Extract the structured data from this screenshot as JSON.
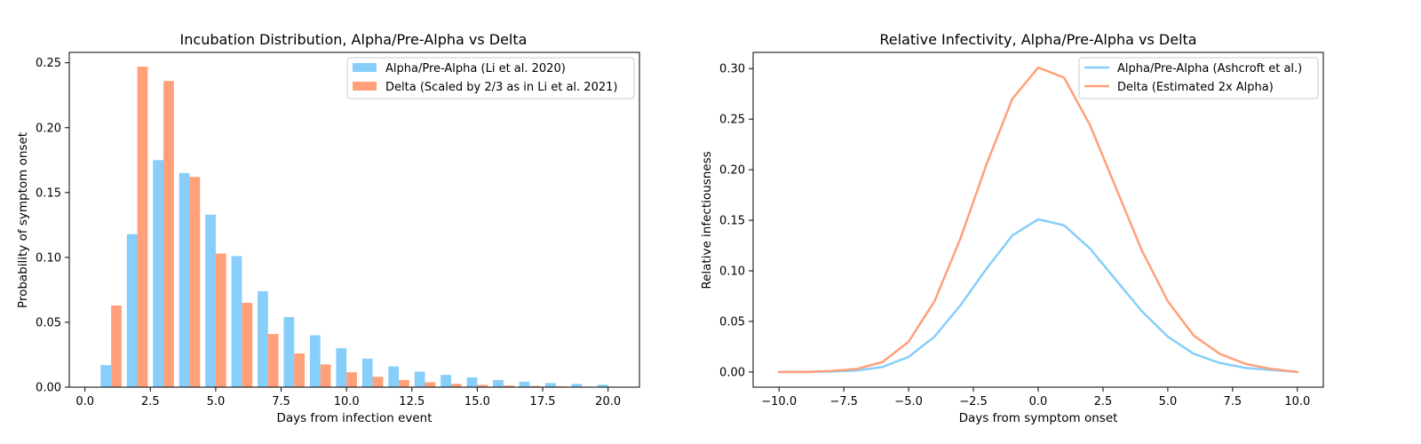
{
  "chart_data": [
    {
      "type": "bar",
      "title": "Incubation Distribution, Alpha/Pre-Alpha vs Delta",
      "xlabel": "Days from infection event",
      "ylabel": "Probability of symptom onset",
      "xlim": [
        -0.6,
        21.2
      ],
      "ylim": [
        0,
        0.258
      ],
      "xticks": [
        0.0,
        2.5,
        5.0,
        7.5,
        10.0,
        12.5,
        15.0,
        17.5,
        20.0
      ],
      "xtick_labels": [
        "0.0",
        "2.5",
        "5.0",
        "7.5",
        "10.0",
        "12.5",
        "15.0",
        "17.5",
        "20.0"
      ],
      "yticks": [
        0.0,
        0.05,
        0.1,
        0.15,
        0.2,
        0.25
      ],
      "ytick_labels": [
        "0.00",
        "0.05",
        "0.10",
        "0.15",
        "0.20",
        "0.25"
      ],
      "legend_position": "top-right",
      "x": [
        1,
        2,
        3,
        4,
        5,
        6,
        7,
        8,
        9,
        10,
        11,
        12,
        13,
        14,
        15,
        16,
        17,
        18,
        19,
        20
      ],
      "series": [
        {
          "name": "Alpha/Pre-Alpha (Li et al. 2020)",
          "color": "#87CEFA",
          "values": [
            0.017,
            0.118,
            0.175,
            0.165,
            0.133,
            0.101,
            0.074,
            0.054,
            0.04,
            0.03,
            0.022,
            0.016,
            0.012,
            0.0095,
            0.0075,
            0.0055,
            0.0042,
            0.0032,
            0.0025,
            0.0019
          ]
        },
        {
          "name": "Delta (Scaled by 2/3 as in Li et al. 2021)",
          "color": "#FFA07A",
          "values": [
            0.063,
            0.247,
            0.236,
            0.162,
            0.103,
            0.065,
            0.041,
            0.026,
            0.0175,
            0.0115,
            0.008,
            0.0055,
            0.0038,
            0.0026,
            0.0018,
            0.0013,
            0.0009,
            0.0006,
            0.0004,
            0.0003
          ]
        }
      ]
    },
    {
      "type": "line",
      "title": "Relative Infectivity, Alpha/Pre-Alpha vs Delta",
      "xlabel": "Days from symptom onset",
      "ylabel": "Relative infectiousness",
      "xlim": [
        -11.0,
        11.0
      ],
      "ylim": [
        -0.015,
        0.316
      ],
      "xticks": [
        -10.0,
        -7.5,
        -5.0,
        -2.5,
        0.0,
        2.5,
        5.0,
        7.5,
        10.0
      ],
      "xtick_labels": [
        "−10.0",
        "−7.5",
        "−5.0",
        "−2.5",
        "0.0",
        "2.5",
        "5.0",
        "7.5",
        "10.0"
      ],
      "yticks": [
        0.0,
        0.05,
        0.1,
        0.15,
        0.2,
        0.25,
        0.3
      ],
      "ytick_labels": [
        "0.00",
        "0.05",
        "0.10",
        "0.15",
        "0.20",
        "0.25",
        "0.30"
      ],
      "legend_position": "top-right",
      "x": [
        -10,
        -9,
        -8,
        -7,
        -6,
        -5,
        -4,
        -3,
        -2,
        -1,
        0,
        1,
        2,
        3,
        4,
        5,
        6,
        7,
        8,
        9,
        10
      ],
      "series": [
        {
          "name": "Alpha/Pre-Alpha (Ashcroft et al.)",
          "color": "#87CEFA",
          "values": [
            0.0,
            0.0,
            0.0005,
            0.0015,
            0.005,
            0.015,
            0.035,
            0.066,
            0.102,
            0.135,
            0.151,
            0.145,
            0.122,
            0.091,
            0.06,
            0.035,
            0.018,
            0.009,
            0.004,
            0.002,
            0.0
          ]
        },
        {
          "name": "Delta (Estimated 2x Alpha)",
          "color": "#FFA07A",
          "values": [
            0.0,
            0.0,
            0.001,
            0.003,
            0.01,
            0.03,
            0.07,
            0.132,
            0.205,
            0.27,
            0.301,
            0.291,
            0.244,
            0.182,
            0.12,
            0.07,
            0.036,
            0.018,
            0.008,
            0.003,
            0.0
          ]
        }
      ]
    }
  ]
}
